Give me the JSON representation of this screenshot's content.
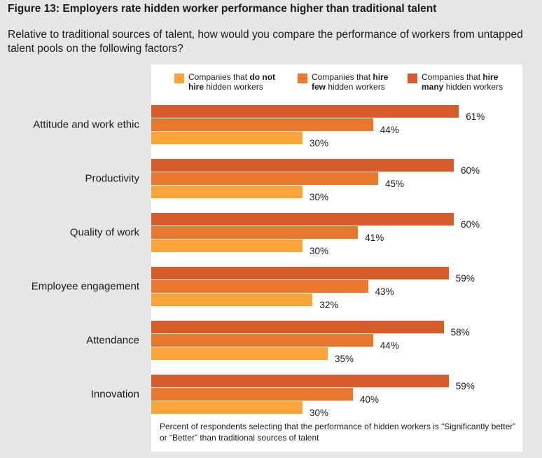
{
  "figure": {
    "title": "Figure 13: Employers rate hidden worker performance higher than traditional talent",
    "subtitle": "Relative to traditional sources of talent, how would you compare the performance of workers from untapped talent pools on the following factors?",
    "footnote": "Percent of respondents selecting that the performance of hidden workers is “Significantly better” or “Better” than traditional sources of talent"
  },
  "legend": [
    {
      "pre": "Companies that ",
      "bold1": "do not",
      "line2_bold": "hire",
      "line2_rest": " hidden workers",
      "color": "#f9a53a"
    },
    {
      "pre": "Companies that ",
      "bold1": "hire",
      "line2_bold": "few",
      "line2_rest": " hidden workers",
      "color": "#e7782d"
    },
    {
      "pre": "Companies that ",
      "bold1": "hire",
      "line2_bold": "many",
      "line2_rest": " hidden workers",
      "color": "#d55c28"
    }
  ],
  "chart_data": {
    "type": "bar",
    "orientation": "horizontal",
    "categories": [
      "Attitude and work ethic",
      "Productivity",
      "Quality of work",
      "Employee engagement",
      "Attendance",
      "Innovation"
    ],
    "series": [
      {
        "name": "Companies that hire many hidden workers",
        "color": "#d55c28",
        "values": [
          61,
          60,
          60,
          59,
          58,
          59
        ]
      },
      {
        "name": "Companies that hire few hidden workers",
        "color": "#e7782d",
        "values": [
          44,
          45,
          41,
          43,
          44,
          40
        ]
      },
      {
        "name": "Companies that do not hire hidden workers",
        "color": "#f9a53a",
        "values": [
          30,
          30,
          30,
          32,
          35,
          30
        ]
      }
    ],
    "value_suffix": "%",
    "xlim": [
      0,
      100
    ],
    "grid": false,
    "legend_position": "top"
  }
}
